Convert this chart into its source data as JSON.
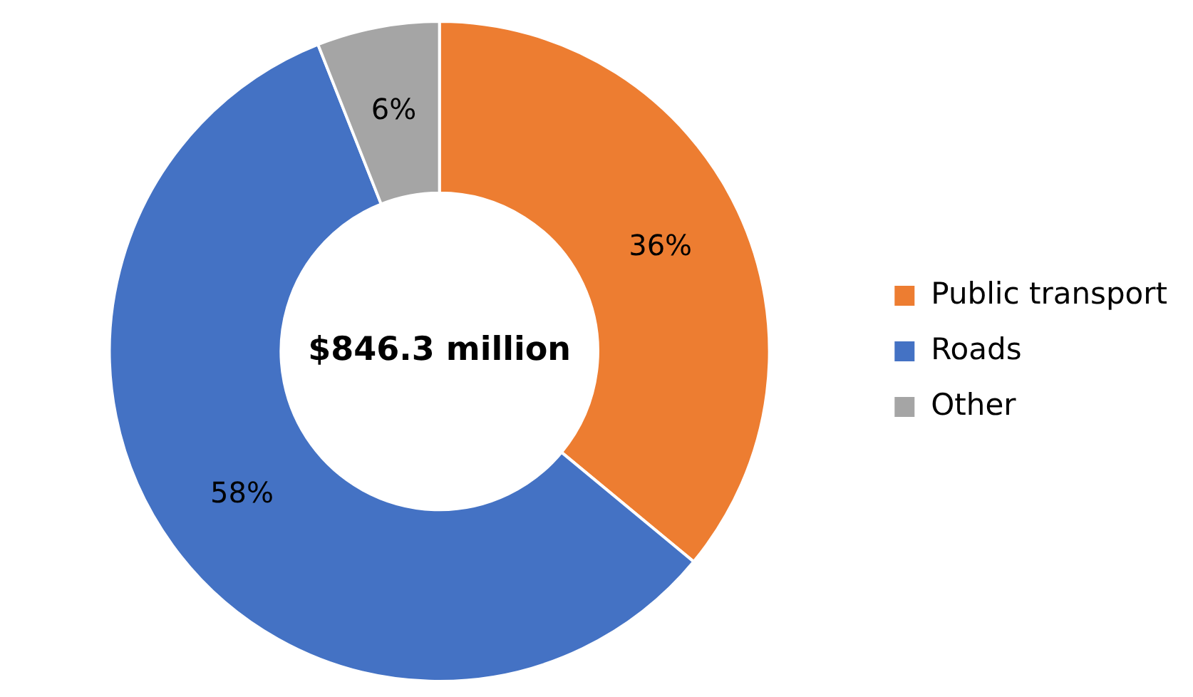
{
  "chart_data": {
    "type": "donut",
    "categories": [
      "Public transport",
      "Roads",
      "Other"
    ],
    "values": [
      36,
      58,
      6
    ],
    "colors": [
      "#ed7d31",
      "#4472c4",
      "#a5a5a5"
    ],
    "value_labels": [
      "36%",
      "58%",
      "6%"
    ],
    "annotations": [
      "$846.3 million"
    ],
    "legend": "right"
  }
}
